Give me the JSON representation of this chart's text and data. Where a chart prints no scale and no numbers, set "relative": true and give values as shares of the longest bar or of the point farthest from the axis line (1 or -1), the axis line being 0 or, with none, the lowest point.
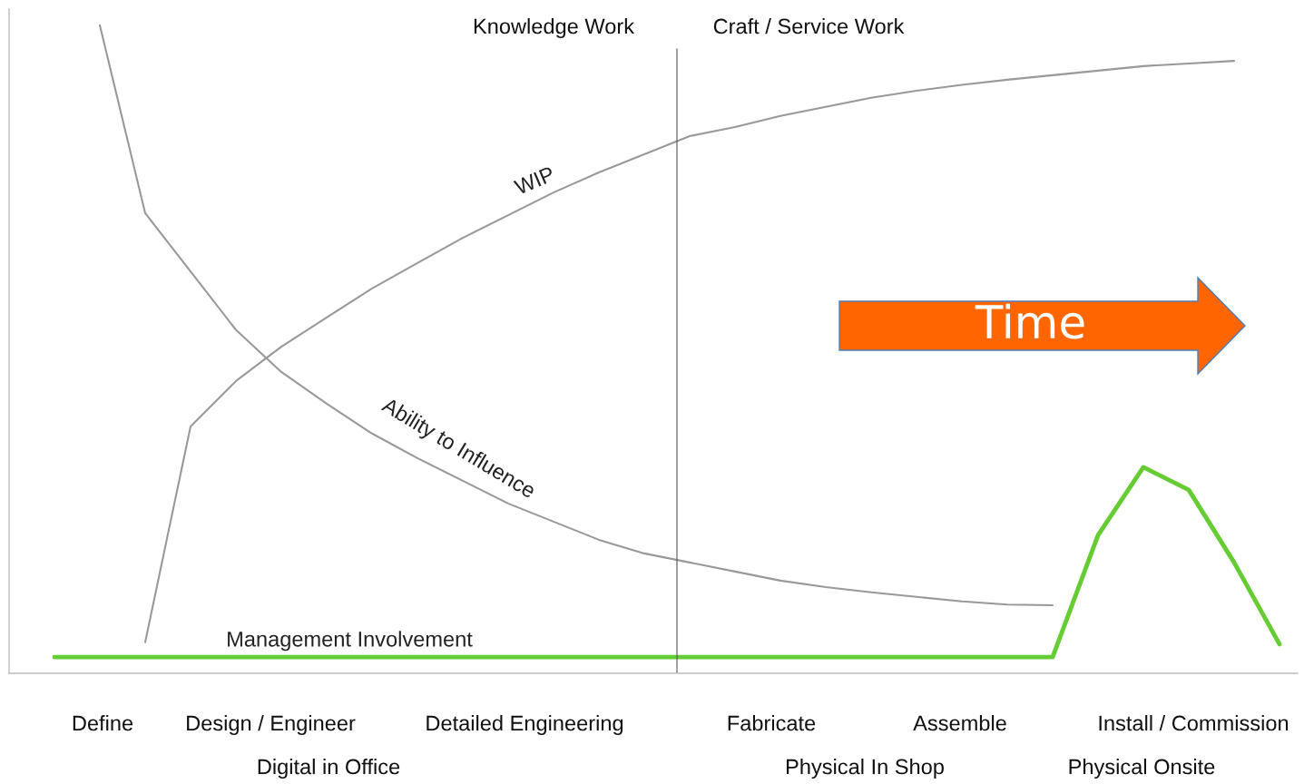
{
  "chart_data": {
    "type": "line",
    "relative": true,
    "legend": false,
    "categories": [
      null,
      null,
      null,
      null,
      null,
      null,
      null,
      null,
      null,
      null,
      null,
      null,
      null,
      null,
      null,
      null,
      null,
      null,
      null,
      null,
      null,
      null,
      null,
      null,
      null,
      null,
      null,
      null
    ],
    "series": [
      {
        "name": "Ability to Influence",
        "color": "#999999",
        "values": [
          null,
          1.0,
          0.71,
          0.62,
          0.53,
          0.465,
          0.416,
          0.37,
          0.332,
          0.297,
          0.262,
          0.234,
          0.206,
          0.185,
          0.171,
          0.157,
          0.143,
          0.133,
          0.125,
          0.118,
          0.111,
          0.106,
          0.105,
          null,
          null,
          null,
          null,
          null
        ]
      },
      {
        "name": "WIP",
        "color": "#999999",
        "values": [
          null,
          null,
          0.048,
          0.381,
          0.451,
          0.504,
          0.549,
          0.594,
          0.633,
          0.672,
          0.707,
          0.742,
          0.773,
          0.801,
          0.829,
          0.843,
          0.86,
          0.874,
          0.888,
          0.899,
          0.908,
          0.916,
          0.923,
          0.93,
          0.937,
          0.941,
          0.945,
          null
        ]
      },
      {
        "name": "Management Involvement",
        "color": "#66cc33",
        "values": [
          0.025,
          0.025,
          0.025,
          0.025,
          0.025,
          0.025,
          0.025,
          0.025,
          0.025,
          0.025,
          0.025,
          0.025,
          0.025,
          0.025,
          0.025,
          0.025,
          0.025,
          0.025,
          0.025,
          0.025,
          0.025,
          0.025,
          0.025,
          0.213,
          0.318,
          0.283,
          0.171,
          0.045
        ]
      }
    ],
    "annotations": [
      "Knowledge Work",
      "Craft / Service Work",
      "Time",
      "Define",
      "Design / Engineer",
      "Detailed Engineering",
      "Fabricate",
      "Assemble",
      "Install / Commission",
      "Digital in Office",
      "Physical In Shop",
      "Physical Onsite"
    ]
  }
}
